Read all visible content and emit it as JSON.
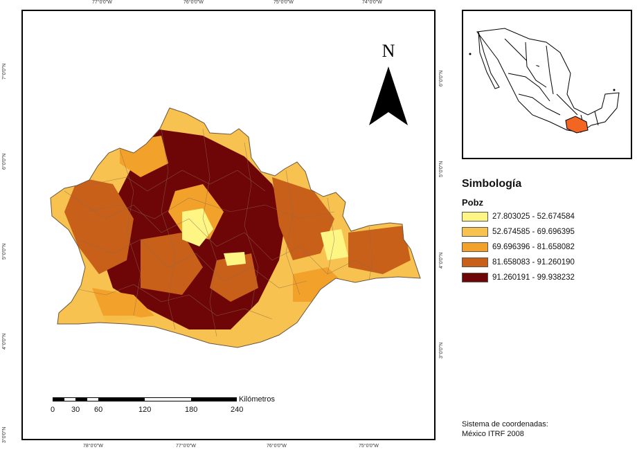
{
  "map": {
    "top_ticks": [
      "77°0'0\"W",
      "76°0'0\"W",
      "75°0'0\"W",
      "74°0'0\"W"
    ],
    "bottom_ticks": [
      "78°0'0\"W",
      "77°0'0\"W",
      "76°0'0\"W",
      "75°0'0\"W"
    ],
    "left_ticks": [
      "7°0'0\"N",
      "6°0'0\"N",
      "5°0'0\"N",
      "4°0'0\"N",
      "3°0'0\"N"
    ],
    "right_ticks": [
      "6°0'0\"N",
      "5°0'0\"N",
      "4°0'0\"N",
      "3°0'0\"N"
    ],
    "north_letter": "N",
    "north_arrow_icon": "north-arrow-icon"
  },
  "scale": {
    "unit": "Kilómetros",
    "labels": [
      "0",
      "30",
      "60",
      "120",
      "180",
      "240"
    ]
  },
  "legend": {
    "title": "Simbología",
    "field": "Pobz",
    "classes": [
      {
        "label": "27.803025 - 52.674584",
        "color": "#fdf685"
      },
      {
        "label": "52.674585 - 69.696395",
        "color": "#f7c24f"
      },
      {
        "label": "69.696396 - 81.658082",
        "color": "#f2a22a"
      },
      {
        "label": "81.658083 - 91.260190",
        "color": "#c8601a"
      },
      {
        "label": "91.260191 - 99.938232",
        "color": "#6e0607"
      }
    ]
  },
  "inset": {
    "highlight_color": "#f26522"
  },
  "crs": {
    "line1": "Sistema de coordenadas:",
    "line2": "México ITRF 2008"
  }
}
